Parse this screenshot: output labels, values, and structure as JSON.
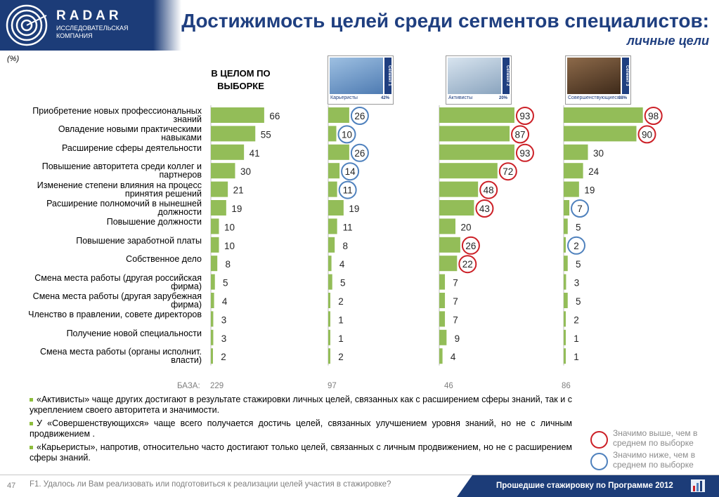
{
  "header": {
    "brand_name": "RADAR",
    "brand_sub": "ИССЛЕДОВАТЕЛЬСКАЯ КОМПАНИЯ",
    "title": "Достижимость целей среди сегментов специалистов:",
    "subtitle": "личные цели"
  },
  "unit_label": "(%)",
  "overall_label": "В ЦЕЛОМ ПО ВЫБОРКЕ",
  "segments": [
    {
      "name": "Карьеристы",
      "tag": "Сегмент 1",
      "share": "42%"
    },
    {
      "name": "Активисты",
      "tag": "Сегмент 2",
      "share": "20%"
    },
    {
      "name": "Совершенствующиеся",
      "tag": "Сегмент 3",
      "share": "38%"
    }
  ],
  "chart_data": {
    "type": "bar",
    "orientation": "horizontal",
    "categories": [
      "Приобретение новых профессиональных знаний",
      "Овладение новыми практическими навыками",
      "Расширение сферы деятельности",
      "Повышение авторитета среди коллег и партнеров",
      "Изменение степени влияния на процесс принятия решений",
      "Расширение полномочий в нынешней должности",
      "Повышение должности",
      "Повышение заработной платы",
      "Собственное дело",
      "Смена места работы (другая российская фирма)",
      "Смена места работы (другая зарубежная фирма)",
      "Членство в правлении, совете директоров",
      "Получение новой специальности",
      "Смена места работы (органы исполнит. власти)"
    ],
    "series": [
      {
        "name": "В ЦЕЛОМ ПО ВЫБОРКЕ",
        "values": [
          66,
          55,
          41,
          30,
          21,
          19,
          10,
          10,
          8,
          5,
          4,
          3,
          3,
          2
        ],
        "base": 229,
        "marks": [
          "",
          "",
          "",
          "",
          "",
          "",
          "",
          "",
          "",
          "",
          "",
          "",
          "",
          ""
        ]
      },
      {
        "name": "Карьеристы",
        "values": [
          26,
          10,
          26,
          14,
          11,
          19,
          11,
          8,
          4,
          5,
          2,
          1,
          1,
          2
        ],
        "base": 97,
        "marks": [
          "low",
          "low",
          "low",
          "low",
          "low",
          "",
          "",
          "",
          "",
          "",
          "",
          "",
          "",
          ""
        ]
      },
      {
        "name": "Активисты",
        "values": [
          93,
          87,
          93,
          72,
          48,
          43,
          20,
          26,
          22,
          7,
          7,
          7,
          9,
          4
        ],
        "base": 46,
        "marks": [
          "high",
          "high",
          "high",
          "high",
          "high",
          "high",
          "",
          "high",
          "high",
          "",
          "",
          "",
          "",
          ""
        ]
      },
      {
        "name": "Совершенствующиеся",
        "values": [
          98,
          90,
          30,
          24,
          19,
          7,
          5,
          2,
          5,
          3,
          5,
          2,
          1,
          1
        ],
        "base": 86,
        "marks": [
          "high",
          "high",
          "",
          "",
          "",
          "low",
          "",
          "low",
          "",
          "",
          "",
          "",
          "",
          ""
        ]
      }
    ],
    "base_label": "БАЗА:",
    "xlim": [
      0,
      100
    ],
    "bar_color": "#93bd58",
    "high_color": "#cc2027",
    "low_color": "#4f81bd"
  },
  "notes": [
    "«Активисты» чаще других достигают в результате стажировки личных целей, связанных как с расширением сферы знаний, так и с укреплением своего авторитета и значимости.",
    "У «Совершенствующихся» чаще всего получается достичь целей, связанных улучшением уровня знаний, но не с личным продвижением .",
    "«Карьеристы», напротив, относительно часто достигают только целей, связанных с личным продвижением, но не с расширением сферы знаний."
  ],
  "legend": {
    "high": "Значимо выше, чем в среднем по выборке",
    "low": "Значимо ниже, чем в среднем по выборке"
  },
  "footer": {
    "page_number": "47",
    "question": "F1. Удалось ли Вам реализовать или подготовиться к реализации целей участия в стажировке?",
    "program": "Прошедшие стажировку по Программе 2012"
  }
}
